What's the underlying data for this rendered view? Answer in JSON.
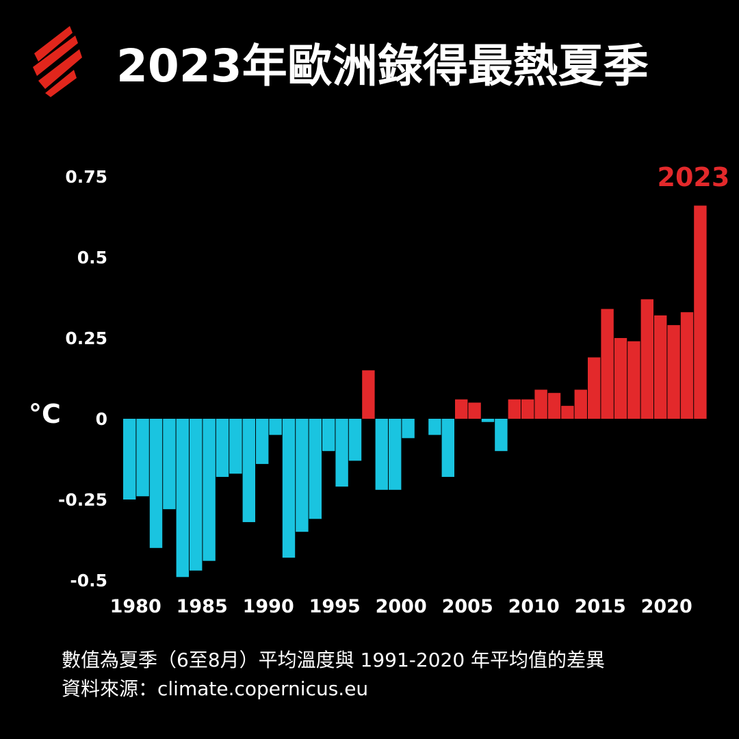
{
  "logo": {
    "icon": "sbs-brand-icon",
    "color": "#e1261c"
  },
  "title": "2023年歐洲錄得最熱夏季",
  "footnote": {
    "line1": "數值為夏季（6至8月）平均溫度與 1991-2020 年平均值的差異",
    "line2": "資料來源：climate.copernicus.eu"
  },
  "chart_data": {
    "type": "bar",
    "title": "2023年歐洲錄得最熱夏季",
    "xlabel": "",
    "ylabel": "°C",
    "ylim": [
      -0.5,
      0.75
    ],
    "yticks": [
      0.75,
      0.5,
      0.25,
      0,
      -0.25,
      -0.5
    ],
    "ytick_labels": [
      "0.75",
      "0.5",
      "0.25",
      "0",
      "-0.25",
      "-0.5"
    ],
    "xticks": [
      "1980",
      "1985",
      "1990",
      "1995",
      "2000",
      "2005",
      "2010",
      "2015",
      "2020"
    ],
    "grid": false,
    "legend": "none",
    "colors": {
      "positive": "#e3292b",
      "negative": "#1ac4e0",
      "annotation": "#e3292b"
    },
    "annotation": {
      "text": "2023",
      "year": 2023
    },
    "categories": [
      1980,
      1981,
      1982,
      1983,
      1984,
      1985,
      1986,
      1987,
      1988,
      1989,
      1990,
      1991,
      1992,
      1993,
      1994,
      1995,
      1996,
      1997,
      1998,
      1999,
      2000,
      2001,
      2002,
      2003,
      2004,
      2005,
      2006,
      2007,
      2008,
      2009,
      2010,
      2011,
      2012,
      2013,
      2014,
      2015,
      2016,
      2017,
      2018,
      2019,
      2020,
      2021,
      2022,
      2023
    ],
    "values": [
      -0.25,
      -0.24,
      -0.4,
      -0.28,
      -0.49,
      -0.47,
      -0.44,
      -0.18,
      -0.17,
      -0.32,
      -0.14,
      -0.05,
      -0.43,
      -0.35,
      -0.31,
      -0.1,
      -0.21,
      -0.13,
      0.15,
      -0.22,
      -0.22,
      -0.06,
      0.0,
      -0.05,
      -0.18,
      0.06,
      0.05,
      -0.01,
      -0.1,
      0.06,
      0.06,
      0.09,
      0.08,
      0.04,
      0.09,
      0.19,
      0.34,
      0.25,
      0.24,
      0.37,
      0.32,
      0.29,
      0.33,
      0.66
    ]
  }
}
